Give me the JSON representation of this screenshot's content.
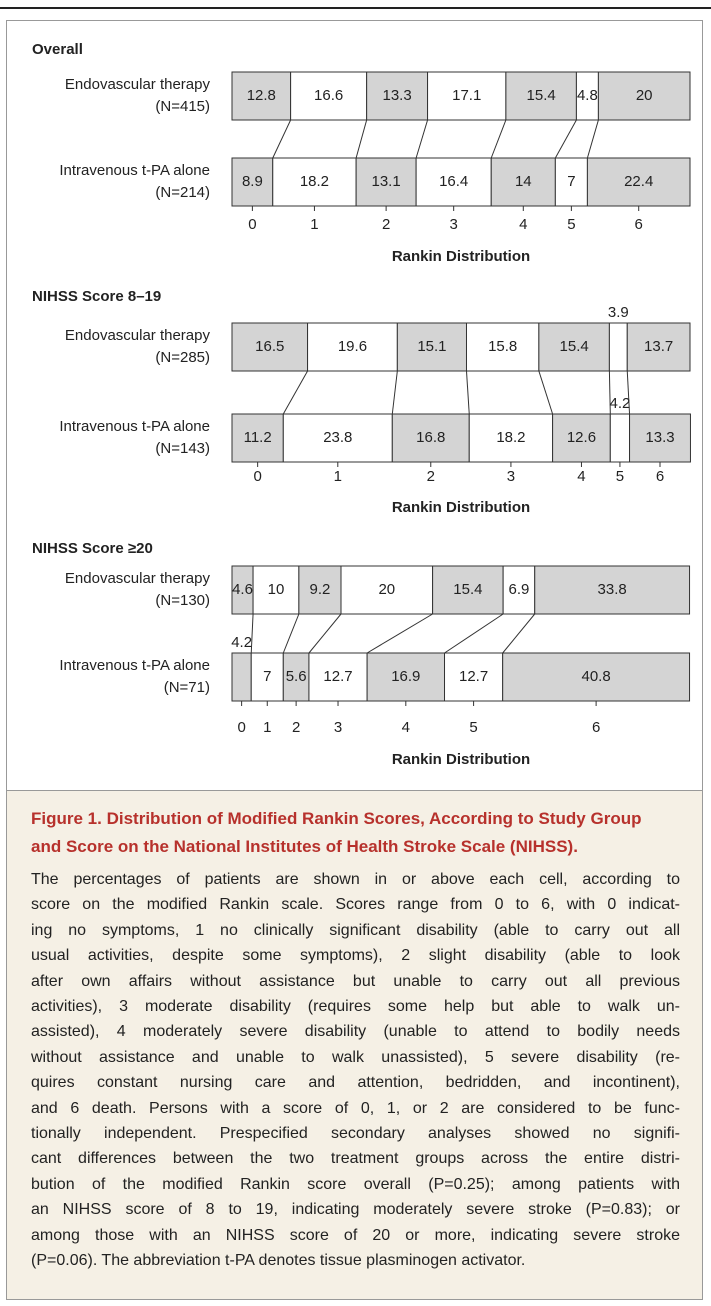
{
  "chart_data": [
    {
      "type": "stacked-bar",
      "title": "Overall",
      "xlim": [
        0,
        100
      ],
      "categories": [
        [
          "Endovascular therapy",
          "(N=415)"
        ],
        [
          "Intravenous t-PA alone",
          "(N=214)"
        ]
      ],
      "x_label": "Rankin Distribution",
      "series": [
        {
          "name": "0",
          "color": "#d4d4d4",
          "values": [
            12.8,
            8.9
          ]
        },
        {
          "name": "1",
          "color": "#ffffff",
          "values": [
            16.6,
            18.2
          ]
        },
        {
          "name": "2",
          "color": "#d4d4d4",
          "values": [
            13.3,
            13.1
          ]
        },
        {
          "name": "3",
          "color": "#ffffff",
          "values": [
            17.1,
            16.4
          ]
        },
        {
          "name": "4",
          "color": "#d4d4d4",
          "values": [
            15.4,
            14.0
          ]
        },
        {
          "name": "5",
          "color": "#ffffff",
          "values": [
            4.8,
            7.0
          ]
        },
        {
          "name": "6",
          "color": "#d4d4d4",
          "values": [
            20.0,
            22.4
          ]
        }
      ]
    },
    {
      "type": "stacked-bar",
      "title": "NIHSS Score 8–19",
      "xlim": [
        0,
        100
      ],
      "categories": [
        [
          "Endovascular therapy",
          "(N=285)"
        ],
        [
          "Intravenous t-PA alone",
          "(N=143)"
        ]
      ],
      "x_label": "Rankin Distribution",
      "series": [
        {
          "name": "0",
          "color": "#d4d4d4",
          "values": [
            16.5,
            11.2
          ]
        },
        {
          "name": "1",
          "color": "#ffffff",
          "values": [
            19.6,
            23.8
          ]
        },
        {
          "name": "2",
          "color": "#d4d4d4",
          "values": [
            15.1,
            16.8
          ]
        },
        {
          "name": "3",
          "color": "#ffffff",
          "values": [
            15.8,
            18.2
          ]
        },
        {
          "name": "4",
          "color": "#d4d4d4",
          "values": [
            15.4,
            12.6
          ]
        },
        {
          "name": "5",
          "color": "#ffffff",
          "values": [
            3.9,
            4.2
          ]
        },
        {
          "name": "6",
          "color": "#d4d4d4",
          "values": [
            13.7,
            13.3
          ]
        }
      ]
    },
    {
      "type": "stacked-bar",
      "title": "NIHSS Score ≥20",
      "xlim": [
        0,
        100
      ],
      "categories": [
        [
          "Endovascular therapy",
          "(N=130)"
        ],
        [
          "Intravenous t-PA alone",
          "(N=71)"
        ]
      ],
      "x_label": "Rankin Distribution",
      "series": [
        {
          "name": "0",
          "color": "#d4d4d4",
          "values": [
            4.6,
            4.2
          ]
        },
        {
          "name": "1",
          "color": "#ffffff",
          "values": [
            10.0,
            7.0
          ]
        },
        {
          "name": "2",
          "color": "#d4d4d4",
          "values": [
            9.2,
            5.6
          ]
        },
        {
          "name": "3",
          "color": "#ffffff",
          "values": [
            20.0,
            12.7
          ]
        },
        {
          "name": "4",
          "color": "#d4d4d4",
          "values": [
            15.4,
            16.9
          ]
        },
        {
          "name": "5",
          "color": "#ffffff",
          "values": [
            6.9,
            12.7
          ]
        },
        {
          "name": "6",
          "color": "#d4d4d4",
          "values": [
            33.8,
            40.8
          ]
        }
      ]
    }
  ],
  "caption": {
    "label": "Figure 1.",
    "title_lines": [
      "Distribution of Modified Rankin Scores, According to Study Group",
      "and Score on the National Institutes of Health Stroke Scale (NIHSS)."
    ],
    "lines": [
      "The percentages of patients are shown in or above each cell, according to",
      "score on the modified Rankin scale. Scores range from 0 to 6, with 0 indicat-",
      "ing no symptoms, 1 no clinically significant disability (able to carry out all",
      "usual activities, despite some symptoms), 2 slight disability (able to look",
      "after own affairs without assistance but unable to carry out all previous",
      "activities), 3 moderate disability (requires some help but able to walk un-",
      "assisted), 4 moderately severe disability (unable to attend to bodily needs",
      "without assistance and unable to walk unassisted), 5 severe disability (re-",
      "quires constant nursing care and attention, bedridden, and incontinent),",
      "and 6 death. Persons with a score of 0, 1, or 2 are considered to be func-",
      "tionally independent. Prespecified secondary analyses showed no signifi-",
      "cant differences between the two treatment groups across the entire distri-",
      "bution of the modified Rankin score overall (P=0.25); among patients with",
      "an NIHSS score of 8 to 19, indicating moderately severe stroke (P=0.83); or",
      "among those with an NIHSS score of 20 or more, indicating severe stroke",
      "(P=0.06). The abbreviation t-PA denotes tissue plasminogen activator."
    ]
  }
}
